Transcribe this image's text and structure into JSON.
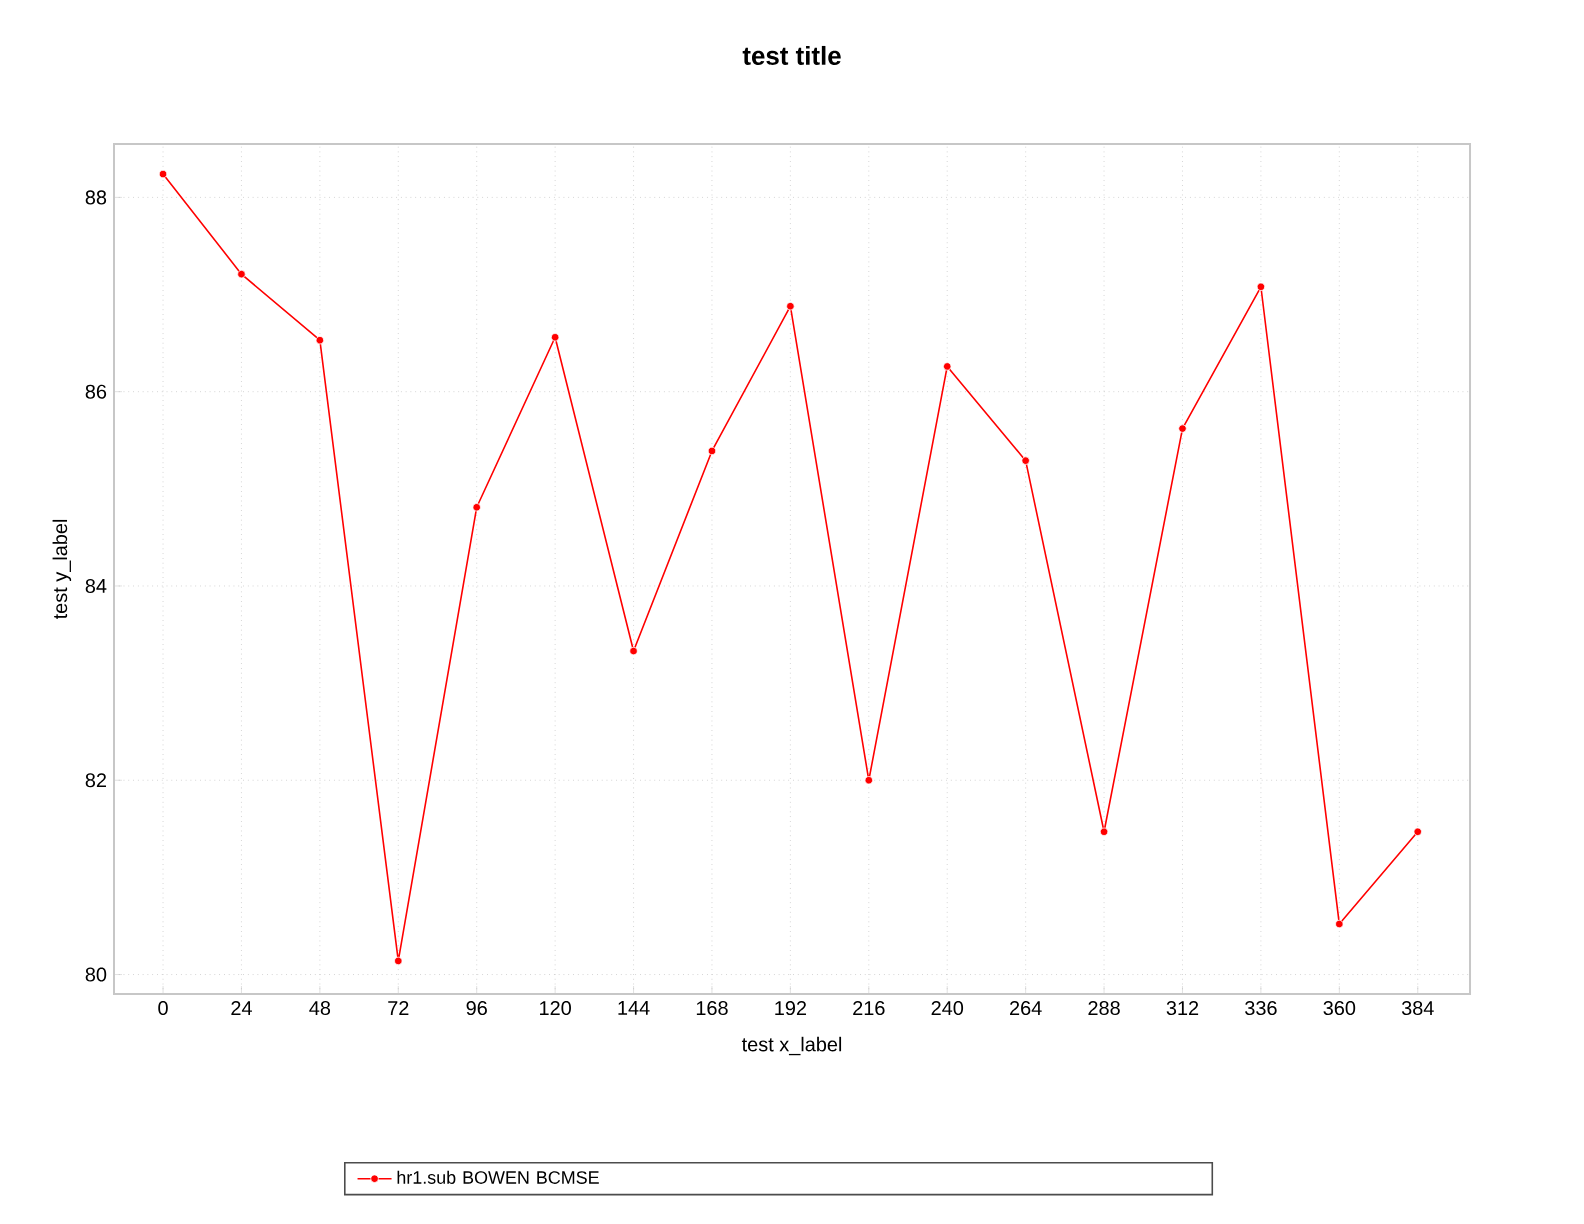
{
  "chart_data": {
    "type": "line",
    "title": "test title",
    "xlabel": "test x_label",
    "ylabel": "test y_label",
    "x": [
      0,
      24,
      48,
      72,
      96,
      120,
      144,
      168,
      192,
      216,
      240,
      264,
      288,
      312,
      336,
      360,
      384
    ],
    "series": [
      {
        "name": "hr1.sub BOWEN BCMSE",
        "color": "#ff0000",
        "values": [
          88.24,
          87.21,
          86.53,
          80.14,
          84.81,
          86.56,
          83.33,
          85.39,
          86.88,
          82.0,
          86.26,
          85.29,
          81.47,
          85.62,
          87.08,
          80.52,
          81.47
        ]
      }
    ],
    "xlim": [
      -15,
      400
    ],
    "ylim": [
      79.8,
      88.55
    ],
    "xticks": [
      0,
      24,
      48,
      72,
      96,
      120,
      144,
      168,
      192,
      216,
      240,
      264,
      288,
      312,
      336,
      360,
      384
    ],
    "yticks": [
      80,
      82,
      84,
      86,
      88
    ],
    "grid": true,
    "legend": "bottom",
    "marker": "circle",
    "line_style": "solid"
  }
}
